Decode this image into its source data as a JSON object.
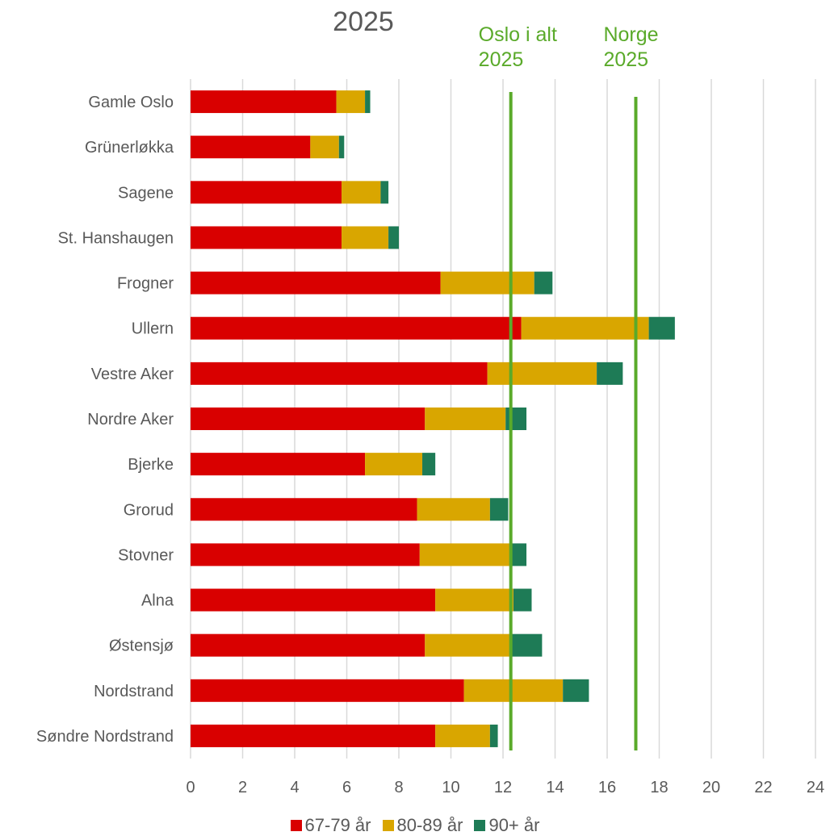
{
  "chart_data": {
    "type": "bar",
    "orientation": "horizontal",
    "stacked": true,
    "title": "2025",
    "xlabel": "",
    "ylabel": "",
    "xlim": [
      0,
      24
    ],
    "xticks": [
      "0",
      "2",
      "4",
      "6",
      "8",
      "10",
      "12",
      "14",
      "16",
      "18",
      "20",
      "22",
      "24"
    ],
    "grid": "vertical",
    "legend_position": "bottom",
    "categories": [
      "Gamle Oslo",
      "Grünerløkka",
      "Sagene",
      "St. Hanshaugen",
      "Frogner",
      "Ullern",
      "Vestre Aker",
      "Nordre Aker",
      "Bjerke",
      "Grorud",
      "Stovner",
      "Alna",
      "Østensjø",
      "Nordstrand",
      "Søndre Nordstrand"
    ],
    "series": [
      {
        "name": "67-79 år",
        "color": "#d90000",
        "values": [
          5.6,
          4.6,
          5.8,
          5.8,
          9.6,
          12.7,
          11.4,
          9.0,
          6.7,
          8.7,
          8.8,
          9.4,
          9.0,
          10.5,
          9.4
        ]
      },
      {
        "name": "80-89 år",
        "color": "#d9a600",
        "values": [
          1.1,
          1.1,
          1.5,
          1.8,
          3.6,
          4.9,
          4.2,
          3.1,
          2.2,
          2.8,
          3.5,
          3.0,
          3.3,
          3.8,
          2.1
        ]
      },
      {
        "name": "90+ år",
        "color": "#1e7b56",
        "values": [
          0.2,
          0.2,
          0.3,
          0.4,
          0.7,
          1.0,
          1.0,
          0.8,
          0.5,
          0.7,
          0.6,
          0.7,
          1.2,
          1.0,
          0.3
        ]
      }
    ],
    "reference_lines": [
      {
        "label": "Oslo i alt\n2025",
        "value": 12.3,
        "color": "#5aaa2a"
      },
      {
        "label": "Norge\n2025",
        "value": 17.1,
        "color": "#5aaa2a"
      }
    ]
  }
}
